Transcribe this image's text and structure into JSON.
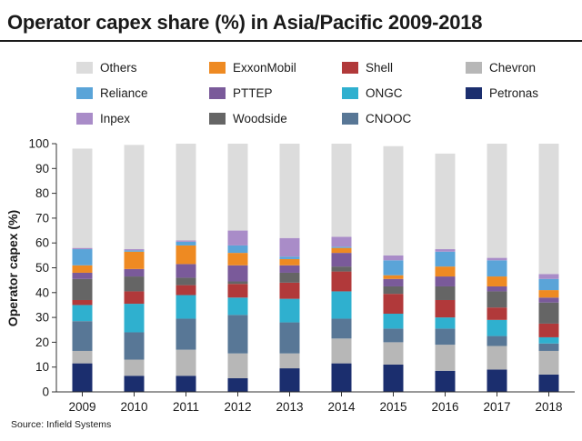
{
  "header": {
    "title": "Operator capex share (%) in Asia/Pacific 2009-2018"
  },
  "source": "Source: Infield Systems",
  "colors": {
    "Petronas": "#1b2e6e",
    "Chevron": "#b7b7b7",
    "CNOOC": "#587796",
    "ONGC": "#2fb0cf",
    "Shell": "#b1393a",
    "Woodside": "#656565",
    "PTTEP": "#7a5a9a",
    "ExxonMobil": "#ee8a22",
    "Reliance": "#5aa4d8",
    "Inpex": "#a98cc8",
    "Others": "#dcdcdc"
  },
  "chart_data": {
    "type": "bar",
    "stacked": true,
    "title": "Operator capex share (%) in Asia/Pacific 2009-2018",
    "xlabel": "",
    "ylabel": "Operator capex (%)",
    "ylim": [
      0,
      100
    ],
    "yticks": [
      0,
      10,
      20,
      30,
      40,
      50,
      60,
      70,
      80,
      90,
      100
    ],
    "grid": false,
    "legend_position": "top",
    "categories": [
      "2009",
      "2010",
      "2011",
      "2012",
      "2013",
      "2014",
      "2015",
      "2016",
      "2017",
      "2018"
    ],
    "series": [
      {
        "name": "Petronas",
        "values": [
          11.5,
          6.5,
          6.5,
          5.5,
          9.5,
          11.5,
          11,
          8.5,
          9,
          7
        ]
      },
      {
        "name": "Chevron",
        "values": [
          5,
          6.5,
          10.5,
          10,
          6,
          10,
          9,
          10.5,
          9.5,
          9.5
        ]
      },
      {
        "name": "CNOOC",
        "values": [
          12,
          11,
          12.5,
          15.5,
          12.5,
          8,
          5.5,
          6.5,
          4,
          3
        ]
      },
      {
        "name": "ONGC",
        "values": [
          6.5,
          11.5,
          9.5,
          7,
          9.5,
          11,
          6,
          4.5,
          6.5,
          2.5
        ]
      },
      {
        "name": "Shell",
        "values": [
          2,
          5,
          4,
          5.5,
          6.5,
          8,
          8,
          7,
          5,
          5.5
        ]
      },
      {
        "name": "Woodside",
        "values": [
          8.5,
          6,
          3,
          1,
          4,
          2,
          3,
          5.5,
          6.5,
          8.5
        ]
      },
      {
        "name": "PTTEP",
        "values": [
          2.5,
          3,
          5.5,
          6.5,
          3,
          5.5,
          3,
          4,
          2,
          2
        ]
      },
      {
        "name": "ExxonMobil",
        "values": [
          3,
          7,
          7.5,
          5,
          2.5,
          2,
          1.5,
          4,
          4,
          3
        ]
      },
      {
        "name": "Reliance",
        "values": [
          6.5,
          0.5,
          1.5,
          3,
          1,
          0.5,
          6,
          6,
          6.5,
          4.5
        ]
      },
      {
        "name": "Inpex",
        "values": [
          0.5,
          0.5,
          0.5,
          6,
          7.5,
          4,
          2,
          1,
          1,
          2
        ]
      },
      {
        "name": "Others",
        "values": [
          40,
          42,
          39,
          35,
          38,
          37.5,
          44,
          38.5,
          46,
          52.5
        ]
      }
    ],
    "legend_order": [
      "Others",
      "ExxonMobil",
      "Shell",
      "Chevron",
      "Reliance",
      "PTTEP",
      "ONGC",
      "Petronas",
      "Inpex",
      "Woodside",
      "CNOOC"
    ]
  }
}
